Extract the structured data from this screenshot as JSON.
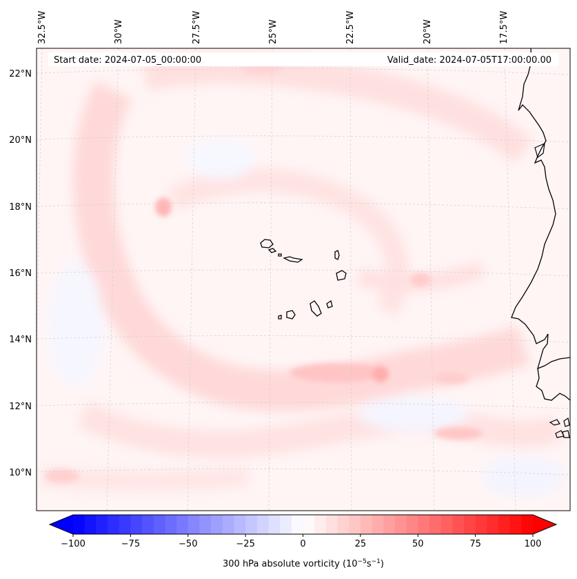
{
  "map": {
    "header_left": "Start date: 2024-07-05_00:00:00",
    "header_right": "Valid_date: 2024-07-05T17:00:00.00",
    "lon_labels": [
      "32.5°W",
      "30°W",
      "27.5°W",
      "25°W",
      "22.5°W",
      "20°W",
      "17.5°W"
    ],
    "lat_labels": [
      "22°N",
      "20°N",
      "18°N",
      "16°N",
      "14°N",
      "12°N",
      "10°N"
    ],
    "colors": {
      "land_outline": "#000000",
      "gridline": "#c8c8c8",
      "background_field": "#fff4f4",
      "positive": "#ff0000",
      "negative": "#0000ff"
    }
  },
  "colorbar": {
    "ticks": [
      "−100",
      "−75",
      "−50",
      "−25",
      "0",
      "25",
      "50",
      "75",
      "100"
    ],
    "range": [
      -100,
      100
    ],
    "step": 5,
    "title": "300 hPa absolute vorticity (10",
    "title_exp1": "−5",
    "title_mid": "s",
    "title_exp2": "−1",
    "title_end": ")"
  }
}
